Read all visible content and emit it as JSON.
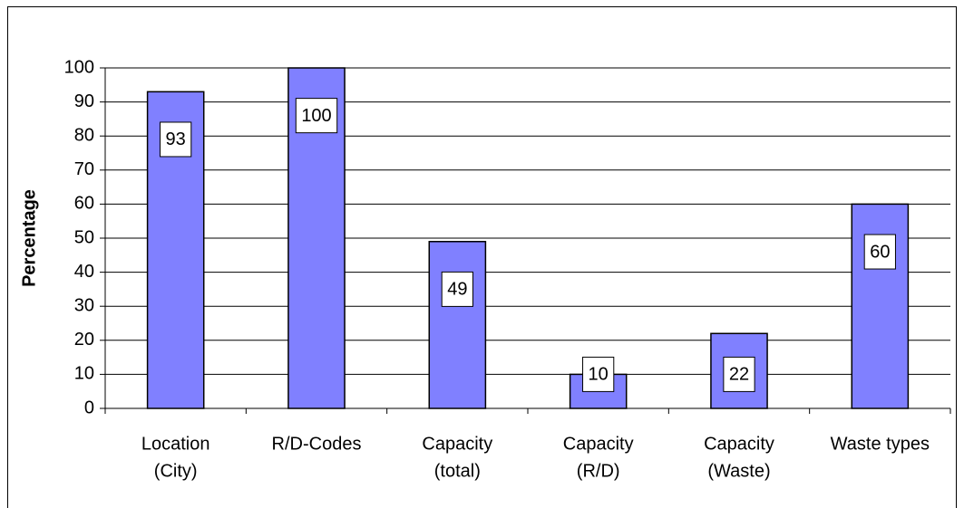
{
  "chart_data": {
    "type": "bar",
    "y_label": "Percentage",
    "categories": [
      [
        "Location",
        "(City)"
      ],
      [
        "R/D-Codes"
      ],
      [
        "Capacity",
        "(total)"
      ],
      [
        "Capacity",
        "(R/D)"
      ],
      [
        "Capacity",
        "(Waste)"
      ],
      [
        "Waste types"
      ]
    ],
    "values": [
      93,
      100,
      49,
      10,
      22,
      60
    ],
    "color": "#8080ff",
    "ylim": [
      0,
      100
    ],
    "yticks": [
      0,
      10,
      20,
      30,
      40,
      50,
      60,
      70,
      80,
      90,
      100
    ],
    "grid": true
  }
}
